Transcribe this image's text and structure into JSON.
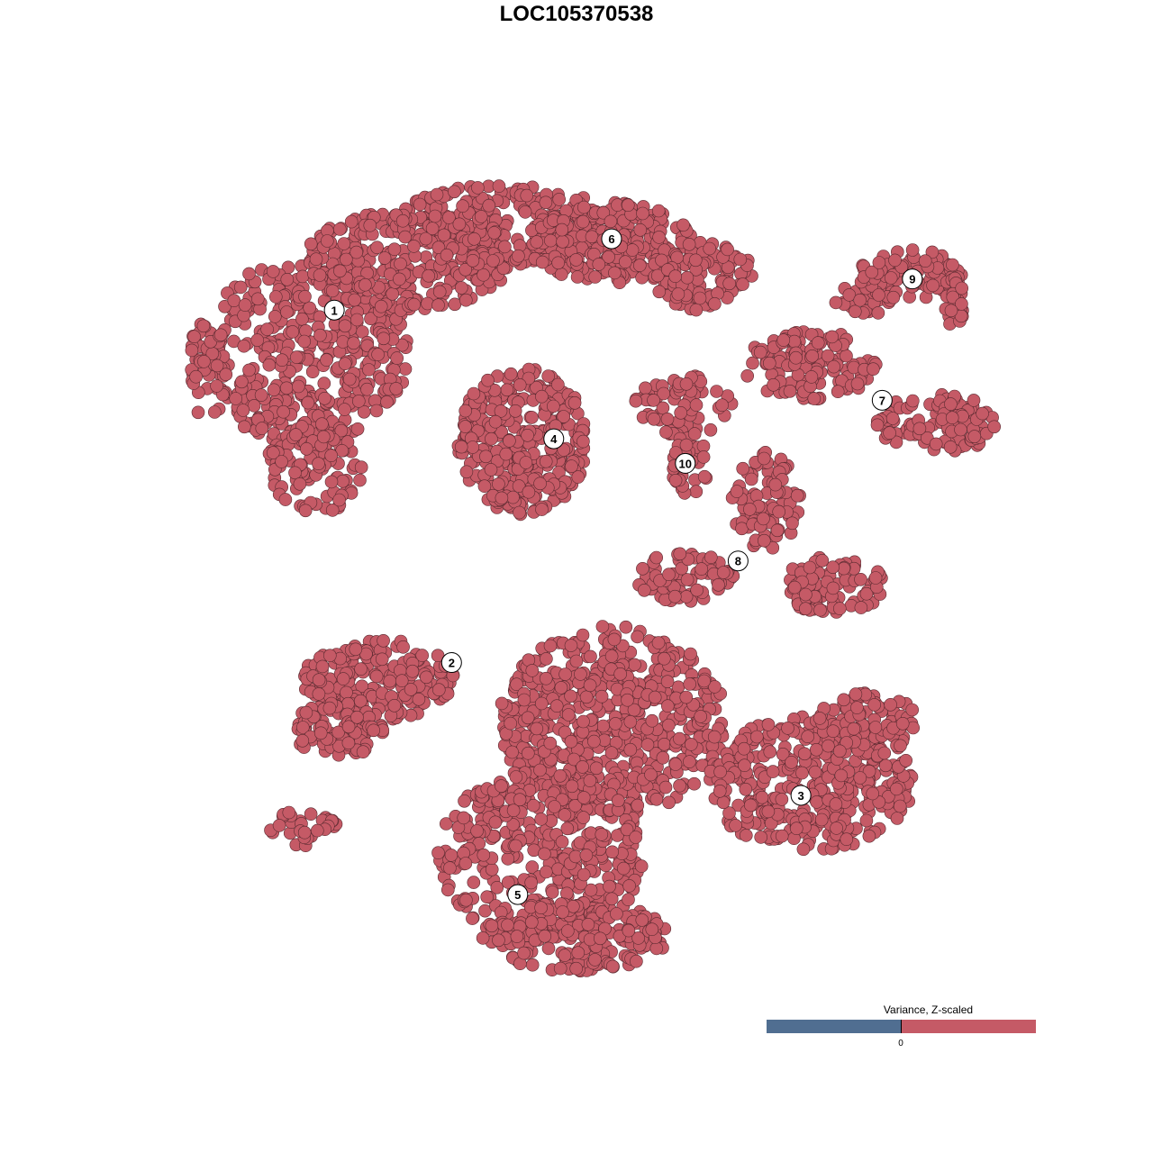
{
  "chart_data": {
    "type": "scatter",
    "title": "LOC105370538",
    "xlabel": "",
    "ylabel": "",
    "axes_visible": false,
    "grid": false,
    "xlim": [
      -50,
      50
    ],
    "ylim": [
      -50,
      50
    ],
    "point_color": "#C55A66",
    "point_edge_color": "#5A2A30",
    "cluster_labels": [
      {
        "label": "1",
        "x": -31.6,
        "y": 32.5
      },
      {
        "label": "2",
        "x": -17.6,
        "y": -10.5
      },
      {
        "label": "3",
        "x": 24.1,
        "y": -26.7
      },
      {
        "label": "4",
        "x": -5.4,
        "y": 16.8
      },
      {
        "label": "5",
        "x": -9.7,
        "y": -38.8
      },
      {
        "label": "6",
        "x": 1.5,
        "y": 41.2
      },
      {
        "label": "7",
        "x": 33.8,
        "y": 21.5
      },
      {
        "label": "8",
        "x": 16.6,
        "y": 1.9
      },
      {
        "label": "9",
        "x": 37.4,
        "y": 36.3
      },
      {
        "label": "10",
        "x": 10.3,
        "y": 13.8
      }
    ],
    "legend": {
      "title": "Variance, Z-scaled",
      "placement": "bottom-right",
      "low_color": "#506E91",
      "high_color": "#C55A66",
      "tick_label": "0"
    }
  }
}
